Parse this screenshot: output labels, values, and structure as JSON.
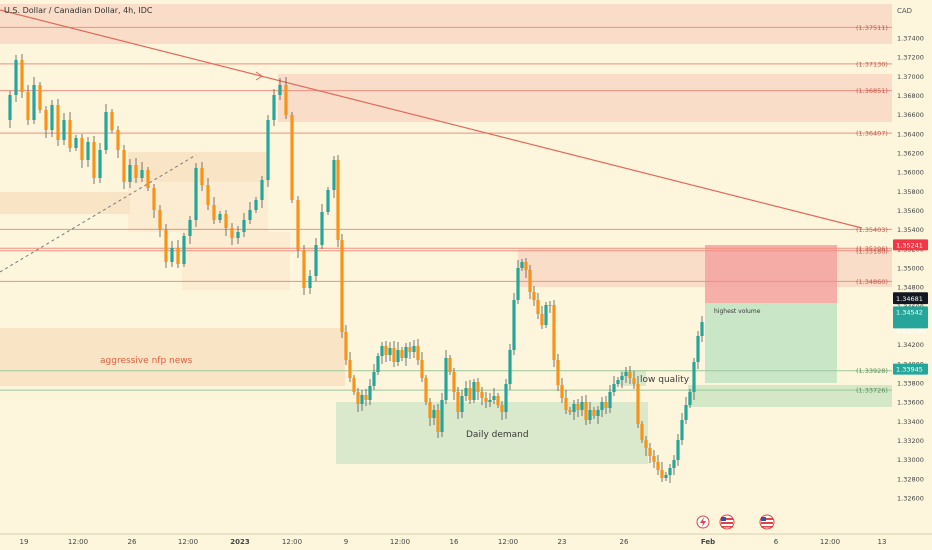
{
  "header": {
    "symbol_title": "U.S. Dollar / Canadian Dollar, 4h, IDC"
  },
  "chart_data": {
    "type": "candlestick",
    "title": "U.S. Dollar / Canadian Dollar, 4h, IDC",
    "currency_label": "CAD",
    "y_range": [
      1.3255,
      1.3762
    ],
    "y_ticks": [
      "1.37400",
      "1.37200",
      "1.37000",
      "1.36800",
      "1.36600",
      "1.36400",
      "1.36200",
      "1.36000",
      "1.35800",
      "1.35600",
      "1.35400",
      "1.35200",
      "1.35000",
      "1.34800",
      "1.34600",
      "1.34400",
      "1.34200",
      "1.34000",
      "1.33800",
      "1.33600",
      "1.33400",
      "1.33200",
      "1.33000",
      "1.32800",
      "1.32600"
    ],
    "x_ticks": [
      "19",
      "12:00",
      "26",
      "12:00",
      "2023",
      "12:00",
      "9",
      "12:00",
      "16",
      "12:00",
      "23",
      "26",
      "Feb",
      "6",
      "12:00",
      "13"
    ],
    "bold_x_ticks": [
      "2023",
      "Feb"
    ],
    "level_labels": [
      "(1.37511)",
      "(1.37130)",
      "(1.36851)",
      "(1.36407)",
      "(1.35403)",
      "(1.35206)",
      "(1.35180)",
      "(1.34860)",
      "(1.33928)",
      "(1.33726)"
    ],
    "price_tags": [
      {
        "text": "1.35241",
        "value": 1.35241,
        "color": "#f23645"
      },
      {
        "text": "1.34690",
        "value": 1.3469,
        "color": "#131722"
      },
      {
        "text": "1.34681",
        "value": 1.34681,
        "color": "#131722"
      },
      {
        "text": "1.34542",
        "value": 1.34542,
        "color": "#26a69a"
      },
      {
        "text": "1.33945",
        "value": 1.33945,
        "color": "#26a69a"
      }
    ],
    "countdown": "03:27:56",
    "annotations": {
      "nfp": "aggressive nfp news",
      "demand": "Daily demand",
      "low_quality": "low quality",
      "highest_volume": "highest volume"
    },
    "position": {
      "type": "long",
      "entry": 1.34681,
      "stop": 1.33945,
      "target": 1.35241
    },
    "colors": {
      "up": "#26a69a",
      "down": "#f7931a",
      "resistance": "#f08a7a",
      "support_zone": "#c9e3c0",
      "wick": "#444444"
    }
  },
  "footer_icons": [
    "lightning-icon",
    "usa-flag-icon",
    "usa-flag-icon"
  ]
}
